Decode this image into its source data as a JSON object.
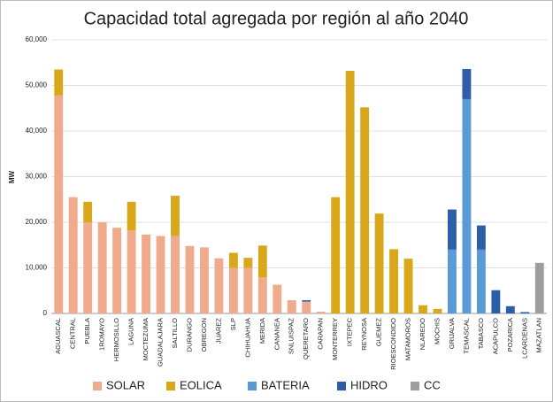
{
  "chart_data": {
    "type": "bar",
    "stacked": true,
    "title": "Capacidad total agregada por región al año 2040",
    "y_label": "MW",
    "categories": [
      "AGUASCAL",
      "CENTRAL",
      "PUEBLA",
      "1ROMAYO",
      "HERMOSILLO",
      "LAGUNA",
      "MOCTEZUMA",
      "GUADALAJARA",
      "SALTILLO",
      "DURANGO",
      "OBREGON",
      "JUAREZ",
      "SLP",
      "CHIHUAHUA",
      "MERIDA",
      "CANANEA",
      "SNLUISPAZ",
      "QUERETARO",
      "CARAPAN",
      "MONTERREY",
      "IXTEPEC",
      "REYNOSA",
      "GUEMEZ",
      "RIOESCONDIDO",
      "MATAMOROS",
      "NLAREDO",
      "MOCHIS",
      "GRIJALVA",
      "TEMASCAL",
      "TABASCO",
      "ACAPULCO",
      "POZARICA",
      "LCARDENAS",
      "MAZATLAN"
    ],
    "series": [
      {
        "name": "SOLAR",
        "color": "#f0aa8c",
        "values": [
          47800,
          25500,
          20000,
          20000,
          18800,
          18200,
          17300,
          17000,
          17000,
          14800,
          14500,
          12100,
          10000,
          10000,
          7900,
          6300,
          2900,
          2600,
          400,
          0,
          0,
          0,
          0,
          0,
          0,
          0,
          0,
          0,
          0,
          0,
          0,
          0,
          0,
          0
        ]
      },
      {
        "name": "EOLICA",
        "color": "#d9a81a",
        "values": [
          5700,
          0,
          4500,
          0,
          0,
          6300,
          0,
          0,
          8800,
          0,
          0,
          0,
          3300,
          2200,
          7000,
          0,
          0,
          0,
          0,
          25500,
          53200,
          45200,
          21900,
          14100,
          12000,
          1800,
          1000,
          0,
          0,
          0,
          0,
          0,
          0,
          0
        ]
      },
      {
        "name": "BATERIA",
        "color": "#5b9bd5",
        "values": [
          0,
          0,
          0,
          0,
          0,
          0,
          0,
          0,
          0,
          0,
          0,
          0,
          0,
          0,
          0,
          0,
          0,
          0,
          0,
          0,
          0,
          0,
          0,
          0,
          0,
          0,
          0,
          14000,
          47000,
          14000,
          0,
          0,
          0,
          0
        ]
      },
      {
        "name": "HIDRO",
        "color": "#2e5ea8",
        "values": [
          0,
          0,
          0,
          0,
          0,
          0,
          0,
          0,
          0,
          0,
          0,
          0,
          0,
          0,
          0,
          0,
          0,
          300,
          0,
          0,
          0,
          0,
          0,
          0,
          0,
          0,
          0,
          8800,
          6600,
          5300,
          5100,
          1600,
          300,
          0
        ]
      },
      {
        "name": "CC",
        "color": "#9e9e9e",
        "values": [
          0,
          0,
          0,
          0,
          0,
          0,
          0,
          0,
          0,
          0,
          0,
          0,
          0,
          0,
          0,
          0,
          0,
          0,
          0,
          0,
          0,
          0,
          0,
          0,
          0,
          0,
          0,
          0,
          0,
          0,
          0,
          0,
          0,
          11100
        ]
      }
    ],
    "ylim": [
      0,
      60000
    ],
    "yticks": [
      0,
      {
        "value": 10000,
        "label": "10,000"
      },
      {
        "value": 20000,
        "label": "20,000"
      },
      {
        "value": 30000,
        "label": "30,000"
      },
      {
        "value": 40000,
        "label": "40,000"
      },
      {
        "value": 50000,
        "label": "50,000"
      },
      {
        "value": 60000,
        "label": "60,000"
      }
    ],
    "grid": true
  }
}
